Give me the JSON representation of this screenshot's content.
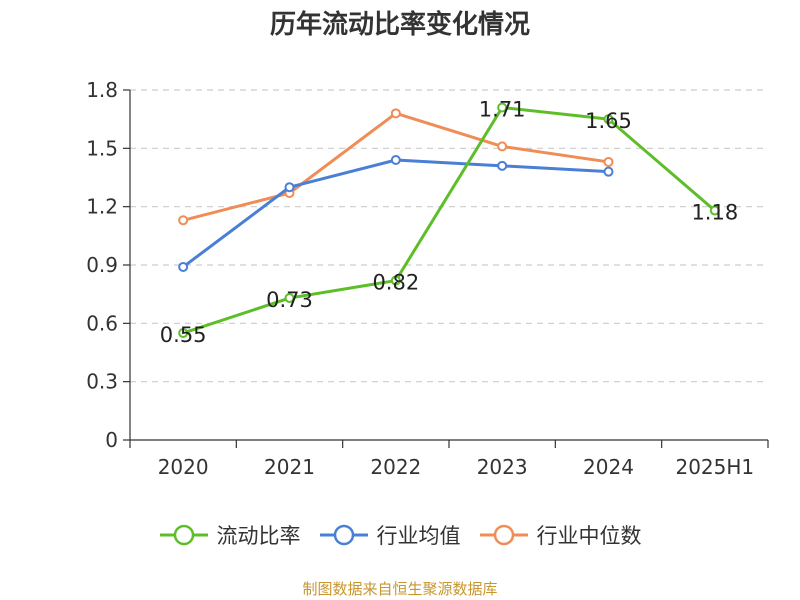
{
  "chart_data": {
    "type": "line",
    "title": "历年流动比率变化情况",
    "categories": [
      "2020",
      "2021",
      "2022",
      "2023",
      "2024",
      "2025H1"
    ],
    "ylim": [
      0,
      1.8
    ],
    "yticks": [
      "0",
      "0.3",
      "0.6",
      "0.9",
      "1.2",
      "1.5",
      "1.8"
    ],
    "grid": true,
    "legend_position": "bottom",
    "series": [
      {
        "name": "流动比率",
        "color": "#5dbe2a",
        "values": [
          0.55,
          0.73,
          0.82,
          1.71,
          1.65,
          1.18
        ],
        "labels": [
          "0.55",
          "0.73",
          "0.82",
          "1.71",
          "1.65",
          "1.18"
        ]
      },
      {
        "name": "行业均值",
        "color": "#4a7fd6",
        "values": [
          0.89,
          1.3,
          1.44,
          1.41,
          1.38,
          null
        ]
      },
      {
        "name": "行业中位数",
        "color": "#f08c55",
        "values": [
          1.13,
          1.27,
          1.68,
          1.51,
          1.43,
          null
        ]
      }
    ]
  },
  "source": "制图数据来自恒生聚源数据库"
}
